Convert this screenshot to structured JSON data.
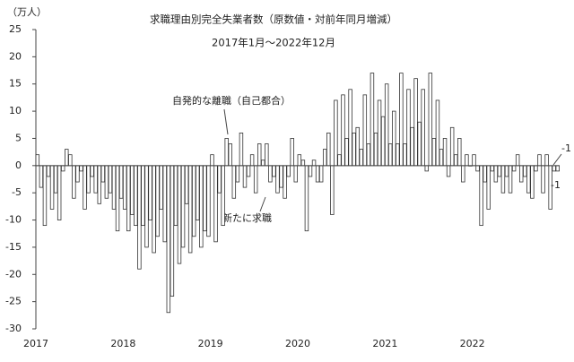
{
  "chart_data": {
    "type": "bar",
    "title": "求職理由別完全失業者数（原数値・対前年同月増減）",
    "subtitle": "2017年1月～2022年12月",
    "y_label": "（万人）",
    "categories": [
      "2017",
      null,
      null,
      null,
      null,
      null,
      null,
      null,
      null,
      null,
      null,
      null,
      "2018",
      null,
      null,
      null,
      null,
      null,
      null,
      null,
      null,
      null,
      null,
      null,
      "2019",
      null,
      null,
      null,
      null,
      null,
      null,
      null,
      null,
      null,
      null,
      null,
      "2020",
      null,
      null,
      null,
      null,
      null,
      null,
      null,
      null,
      null,
      null,
      null,
      "2021",
      null,
      null,
      null,
      null,
      null,
      null,
      null,
      null,
      null,
      null,
      null,
      "2022",
      null,
      null,
      null,
      null,
      null,
      null,
      null,
      null,
      null,
      null,
      null
    ],
    "series": [
      {
        "name": "自発的な離職（自己都合）",
        "color": "#ffffff",
        "values": [
          2,
          -11,
          -8,
          -10,
          3,
          -6,
          -1,
          -5,
          -5,
          -3,
          -5,
          -12,
          -8,
          -9,
          -19,
          -15,
          -16,
          -8,
          -27,
          -11,
          -15,
          -16,
          -10,
          -12,
          2,
          -5,
          5,
          -6,
          6,
          -2,
          -5,
          1,
          -3,
          -5,
          -6,
          5,
          2,
          -12,
          1,
          -3,
          6,
          12,
          13,
          14,
          7,
          13,
          17,
          12,
          15,
          10,
          17,
          14,
          16,
          14,
          17,
          12,
          5,
          7,
          5,
          2,
          2,
          -11,
          -8,
          -3,
          -5,
          -5,
          2,
          -2,
          -6,
          2,
          2,
          -1
        ]
      },
      {
        "name": "新たに求職",
        "color": "#ffffff",
        "values": [
          -4,
          -2,
          -5,
          -1,
          2,
          -3,
          -8,
          -2,
          -7,
          -6,
          -8,
          -6,
          -12,
          -11,
          -11,
          -10,
          -13,
          -14,
          -24,
          -18,
          -7,
          -13,
          -15,
          -13,
          -14,
          -11,
          4,
          -3,
          -4,
          2,
          4,
          4,
          -2,
          -4,
          -2,
          -3,
          1,
          -2,
          -3,
          3,
          -9,
          2,
          5,
          6,
          3,
          4,
          6,
          9,
          4,
          4,
          4,
          7,
          8,
          -1,
          5,
          3,
          -2,
          2,
          -3,
          0,
          -1,
          -3,
          -1,
          -2,
          -2,
          -1,
          -3,
          -5,
          -1,
          -5,
          -8,
          -1
        ]
      }
    ],
    "ylim": [
      -30,
      25
    ],
    "yticks": [
      -30,
      -25,
      -20,
      -15,
      -10,
      -5,
      0,
      5,
      10,
      15,
      20,
      25
    ],
    "stroke": "#333333",
    "grid": false
  }
}
